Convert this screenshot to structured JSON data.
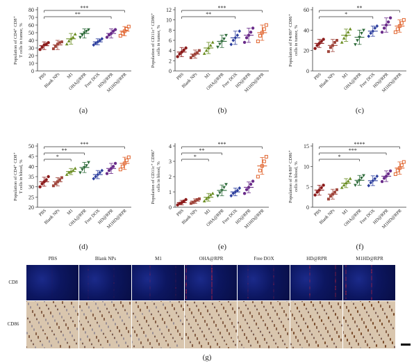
{
  "colors": {
    "PBS": "#8b1a1a",
    "Blank NPs": "#a0463c",
    "M1": "#6b8e23",
    "OHA@RPR": "#2e6b3a",
    "Free DOX": "#2d3f9e",
    "HD@RPR": "#6a2c8a",
    "M1HD@RPR": "#e0612a"
  },
  "groups": [
    "PBS",
    "Blank NPs",
    "M1",
    "OHA@RPR",
    "Free DOX",
    "HD@RPR",
    "M1HD@RPR"
  ],
  "chart_data": [
    {
      "id": "a",
      "type": "scatter",
      "letter": "(a)",
      "ylabel_lines": [
        "Population of CD4⁺ CD8⁺",
        "T cells in tumor, %"
      ],
      "ylim": [
        0,
        80
      ],
      "yticks": [
        0,
        10,
        20,
        30,
        40,
        50,
        60,
        70,
        80
      ],
      "categories": [
        "PBS",
        "Blank NPs",
        "M1",
        "OHA@RPR",
        "Free DOX",
        "HD@RPR",
        "M1HD@RPR"
      ],
      "means": [
        33,
        34,
        42,
        49,
        38,
        49,
        52
      ],
      "errors": [
        5,
        6,
        7,
        6,
        4,
        6,
        6
      ],
      "points": [
        [
          28,
          31,
          34,
          35,
          37
        ],
        [
          29,
          32,
          35,
          37,
          38
        ],
        [
          35,
          39,
          42,
          44,
          48
        ],
        [
          44,
          47,
          50,
          52,
          54
        ],
        [
          34,
          36,
          38,
          40,
          42
        ],
        [
          44,
          47,
          49,
          52,
          54
        ],
        [
          46,
          49,
          52,
          55,
          58
        ]
      ],
      "sig": [
        {
          "from": 0,
          "to": 6,
          "label": "***"
        },
        {
          "from": 0,
          "to": 5,
          "label": "**"
        }
      ]
    },
    {
      "id": "b",
      "type": "scatter",
      "letter": "(b)",
      "ylabel_lines": [
        "Population of CD11c⁺ CD86⁺",
        "cells in tumor, %"
      ],
      "ylim": [
        0,
        12
      ],
      "yticks": [
        0,
        2,
        4,
        6,
        8,
        10,
        12
      ],
      "categories": [
        "PBS",
        "Blank NPs",
        "M1",
        "OHA@RPR",
        "Free DOX",
        "HD@RPR",
        "M1HD@RPR"
      ],
      "means": [
        3.7,
        3.3,
        4.5,
        5.8,
        6.5,
        7.0,
        7.5
      ],
      "errors": [
        0.9,
        0.8,
        1.1,
        1.2,
        1.3,
        1.4,
        1.5
      ],
      "points": [
        [
          2.8,
          3.3,
          3.7,
          4.1,
          4.5
        ],
        [
          2.6,
          3.0,
          3.3,
          3.6,
          4.0
        ],
        [
          3.4,
          4.0,
          4.5,
          5.0,
          5.6
        ],
        [
          4.7,
          5.3,
          5.8,
          6.3,
          7.0
        ],
        [
          5.2,
          6.0,
          6.5,
          7.0,
          7.8
        ],
        [
          5.6,
          6.5,
          7.0,
          7.6,
          8.4
        ],
        [
          5.8,
          6.9,
          7.5,
          8.2,
          9.0
        ]
      ],
      "sig": [
        {
          "from": 0,
          "to": 6,
          "label": "***"
        },
        {
          "from": 0,
          "to": 4,
          "label": "**"
        }
      ]
    },
    {
      "id": "c",
      "type": "scatter",
      "letter": "(c)",
      "ylabel_lines": [
        "Population of F4/80⁺ CD86⁺",
        "cells in tumor, %"
      ],
      "ylim": [
        0,
        60
      ],
      "yticks": [
        0,
        20,
        40,
        60
      ],
      "categories": [
        "PBS",
        "Blank NPs",
        "M1",
        "OHA@RPR",
        "Free DOX",
        "HD@RPR",
        "M1HD@RPR"
      ],
      "means": [
        27,
        25,
        35,
        33,
        39,
        45,
        44
      ],
      "errors": [
        4,
        6,
        6,
        7,
        5,
        7,
        6
      ],
      "points": [
        [
          22,
          25,
          27,
          29,
          31
        ],
        [
          19,
          23,
          25,
          28,
          30
        ],
        [
          28,
          32,
          35,
          38,
          41
        ],
        [
          26,
          30,
          33,
          37,
          40
        ],
        [
          34,
          37,
          39,
          42,
          44
        ],
        [
          38,
          42,
          45,
          48,
          52
        ],
        [
          38,
          41,
          44,
          47,
          50
        ]
      ],
      "sig": [
        {
          "from": 0,
          "to": 6,
          "label": "**"
        },
        {
          "from": 0,
          "to": 4,
          "label": "*"
        }
      ]
    },
    {
      "id": "d",
      "type": "scatter",
      "letter": "(d)",
      "ylabel_lines": [
        "Population of CD4⁺ CD8⁺",
        "T cells in blood, %"
      ],
      "ylim": [
        20,
        50
      ],
      "yticks": [
        20,
        25,
        30,
        35,
        40,
        45,
        50
      ],
      "categories": [
        "PBS",
        "Blank NPs",
        "M1",
        "OHA@RPR",
        "Free DOX",
        "HD@RPR",
        "M1HD@RPR"
      ],
      "means": [
        32.5,
        32.5,
        37.5,
        39.5,
        36,
        39,
        41.5
      ],
      "errors": [
        2.2,
        2.0,
        1.5,
        2.5,
        2.0,
        2.5,
        3.0
      ],
      "points": [
        [
          30,
          31.5,
          32.5,
          33.5,
          35
        ],
        [
          30.5,
          31.5,
          32.5,
          33.5,
          34.5
        ],
        [
          36,
          37,
          37.5,
          38,
          39
        ],
        [
          37,
          38.5,
          39.5,
          40.5,
          42
        ],
        [
          34,
          35,
          36,
          37,
          38
        ],
        [
          36.5,
          38,
          39,
          40,
          41.5
        ],
        [
          38.5,
          40,
          41.5,
          43,
          44.5
        ]
      ],
      "sig": [
        {
          "from": 0,
          "to": 6,
          "label": "***"
        },
        {
          "from": 0,
          "to": 3,
          "label": "**"
        },
        {
          "from": 0,
          "to": 2,
          "label": "*"
        }
      ]
    },
    {
      "id": "e",
      "type": "scatter",
      "letter": "(e)",
      "ylabel_lines": [
        "Population of CD11c⁺ CD86⁺",
        "cells in blood, %"
      ],
      "ylim": [
        0,
        4
      ],
      "yticks": [
        0,
        1,
        2,
        3,
        4
      ],
      "categories": [
        "PBS",
        "Blank NPs",
        "M1",
        "OHA@RPR",
        "Free DOX",
        "HD@RPR",
        "M1HD@RPR"
      ],
      "means": [
        0.3,
        0.4,
        0.65,
        1.1,
        1.0,
        1.3,
        2.7
      ],
      "errors": [
        0.15,
        0.15,
        0.25,
        0.35,
        0.25,
        0.35,
        0.55
      ],
      "points": [
        [
          0.15,
          0.25,
          0.3,
          0.4,
          0.5
        ],
        [
          0.25,
          0.3,
          0.4,
          0.5,
          0.55
        ],
        [
          0.4,
          0.55,
          0.65,
          0.8,
          0.9
        ],
        [
          0.75,
          0.95,
          1.1,
          1.3,
          1.5
        ],
        [
          0.75,
          0.9,
          1.0,
          1.1,
          1.25
        ],
        [
          0.9,
          1.15,
          1.3,
          1.5,
          1.7
        ],
        [
          2.0,
          2.4,
          2.7,
          3.0,
          3.3
        ]
      ],
      "sig": [
        {
          "from": 0,
          "to": 6,
          "label": "***"
        },
        {
          "from": 0,
          "to": 3,
          "label": "**"
        },
        {
          "from": 0,
          "to": 2,
          "label": "*"
        }
      ]
    },
    {
      "id": "f",
      "type": "scatter",
      "letter": "(f)",
      "ylabel_lines": [
        "Population of F4/80⁺ CD86⁺",
        "cells in blood, %"
      ],
      "ylim": [
        0,
        15
      ],
      "yticks": [
        0,
        5,
        10,
        15
      ],
      "categories": [
        "PBS",
        "Blank NPs",
        "M1",
        "OHA@RPR",
        "Free DOX",
        "HD@RPR",
        "M1HD@RPR"
      ],
      "means": [
        4.2,
        3.2,
        5.9,
        6.6,
        6.5,
        7.6,
        9.6
      ],
      "errors": [
        1.2,
        1.2,
        1.1,
        1.2,
        1.2,
        1.3,
        1.5
      ],
      "points": [
        [
          3.0,
          3.7,
          4.2,
          4.8,
          5.4
        ],
        [
          2.0,
          2.7,
          3.2,
          3.7,
          4.3
        ],
        [
          4.8,
          5.4,
          5.9,
          6.4,
          7.0
        ],
        [
          5.4,
          6.1,
          6.6,
          7.2,
          7.8
        ],
        [
          5.3,
          6.0,
          6.5,
          7.0,
          7.6
        ],
        [
          6.3,
          7.1,
          7.6,
          8.2,
          8.9
        ],
        [
          8.1,
          9.0,
          9.6,
          10.3,
          11.1
        ]
      ],
      "sig": [
        {
          "from": 0,
          "to": 6,
          "label": "****"
        },
        {
          "from": 0,
          "to": 5,
          "label": "***"
        },
        {
          "from": 0,
          "to": 3,
          "label": "*"
        }
      ]
    }
  ],
  "micro": {
    "columns": [
      "PBS",
      "Blank NPs",
      "M1",
      "OHA@RPR",
      "Free DOX",
      "HD@RPR",
      "M1HD@RPR"
    ],
    "rows": [
      "CD8",
      "CD86"
    ],
    "letter": "(g)"
  }
}
